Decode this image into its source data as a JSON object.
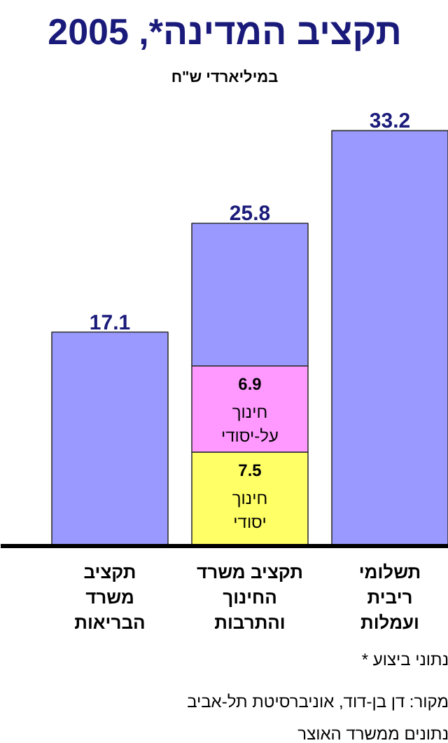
{
  "chart_data": {
    "type": "bar",
    "stacked": true,
    "title": "תקציב המדינה*, 2005",
    "subtitle": "במיליארדי ש\"ח",
    "categories": [
      "תקציב\nמשרד\nהבריאות",
      "תקציב משרד\nהחינוך\nוהתרבות",
      "תשלומי\nריבית\nועמלות"
    ],
    "series": [
      {
        "name": "חינוך\nיסודי",
        "color": "#ffff66",
        "values": [
          null,
          7.5,
          null
        ],
        "value_labels": [
          null,
          "7.5",
          null
        ]
      },
      {
        "name": "חינוך\nעל-יסודי",
        "color": "#ff99ff",
        "values": [
          null,
          6.9,
          null
        ],
        "value_labels": [
          null,
          "6.9",
          null
        ]
      },
      {
        "color": "#9999ff",
        "values": [
          17.1,
          11.4,
          33.2
        ]
      }
    ],
    "totals": [
      "17.1",
      "25.8",
      "33.2"
    ],
    "annotations": [
      "* נתוני ביצוע",
      "מקור: דן בן-דוד, אוניברסיטת תל-אביב",
      "נתונים ממשרד האוצר"
    ]
  }
}
